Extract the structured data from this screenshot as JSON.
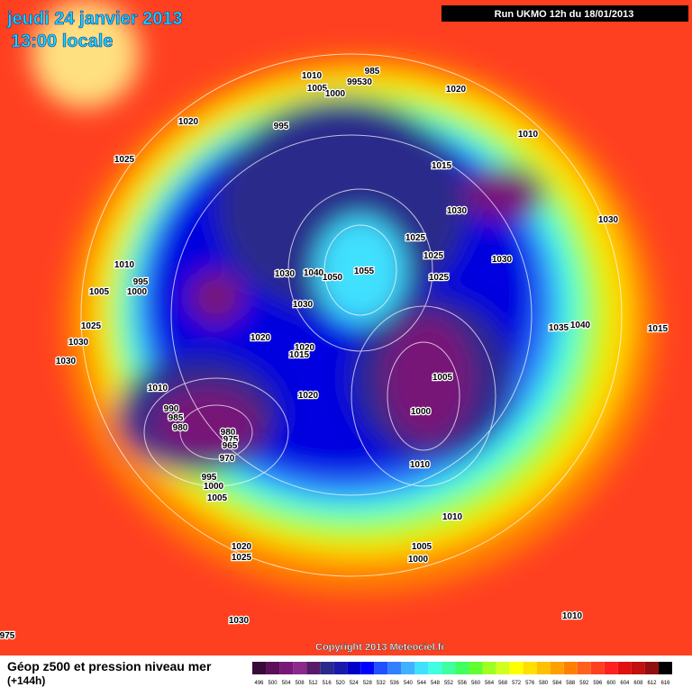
{
  "header": {
    "date": "jeudi 24 janvier 2013",
    "time": "13:00 locale",
    "run": "Run UKMO 12h du 18/01/2013"
  },
  "map": {
    "copyright": "Copyright 2013 Meteociel.fr",
    "isobar_labels": [
      "1010",
      "1005",
      "99530",
      "1000",
      "985",
      "1020",
      "1020",
      "995",
      "1010",
      "1025",
      "1015",
      "1030",
      "1030",
      "1025",
      "1025",
      "1030",
      "1010",
      "995",
      "1000",
      "1005",
      "1055",
      "1050",
      "1030",
      "1040",
      "1025",
      "1030",
      "1025",
      "1030",
      "1030",
      "1020",
      "1020",
      "1015",
      "1040",
      "1035",
      "1015",
      "1010",
      "1005",
      "1020",
      "990",
      "985",
      "980",
      "1000",
      "980",
      "975",
      "965",
      "970",
      "995",
      "1000",
      "1005",
      "1010",
      "1010",
      "1020",
      "1025",
      "1005",
      "1000",
      "1030",
      "1010",
      "975"
    ]
  },
  "legend": {
    "title": "Géop z500 et pression niveau mer",
    "subtitle": "(+144h)",
    "scale_labels": [
      496,
      500,
      504,
      508,
      512,
      516,
      520,
      524,
      528,
      532,
      536,
      540,
      544,
      548,
      552,
      556,
      560,
      564,
      568,
      572,
      576,
      580,
      584,
      588,
      592,
      596,
      600,
      604,
      608,
      612,
      616
    ],
    "colors": [
      "#3a0a3a",
      "#5a105a",
      "#781878",
      "#8a2a8a",
      "#5a1a6a",
      "#2a2a8a",
      "#1a1aaa",
      "#0000c8",
      "#0000ff",
      "#2050ff",
      "#3080ff",
      "#40b0ff",
      "#40e0ff",
      "#40ffe0",
      "#40ffa0",
      "#40ff60",
      "#60ff30",
      "#a0ff20",
      "#d0ff20",
      "#ffff00",
      "#ffe000",
      "#ffc000",
      "#ffa000",
      "#ff8000",
      "#ff6020",
      "#ff4020",
      "#ff2020",
      "#e01010",
      "#c01010",
      "#901010",
      "#000000"
    ]
  }
}
